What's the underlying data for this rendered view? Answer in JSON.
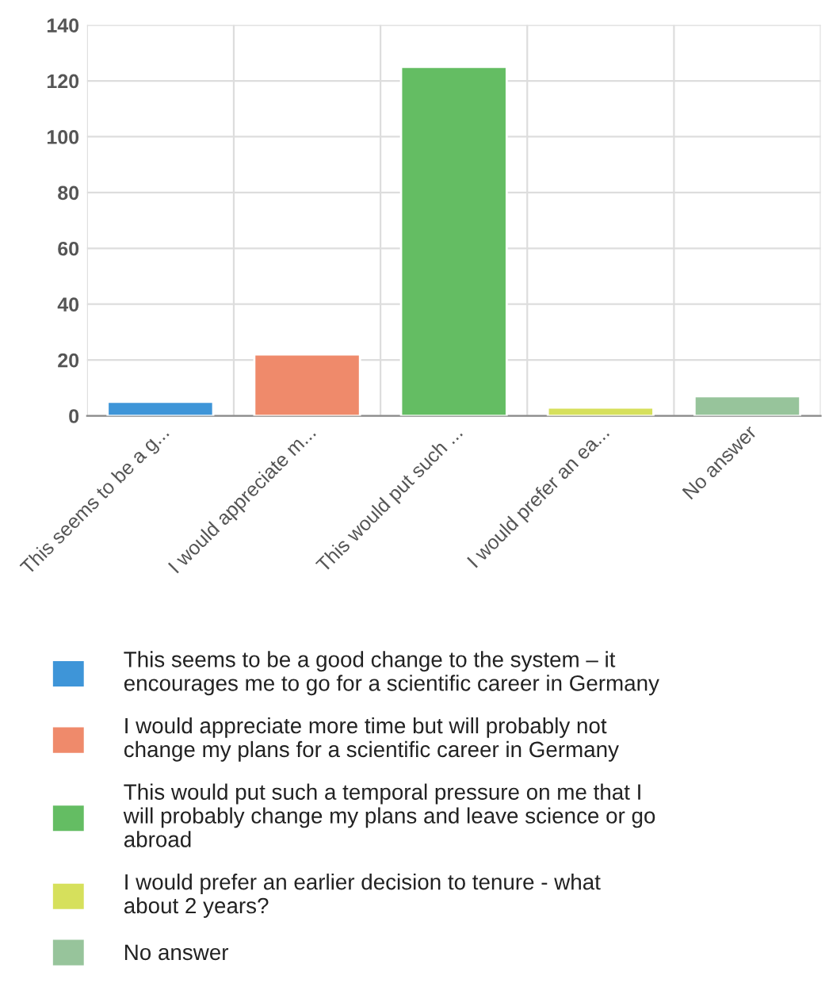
{
  "chart_data": {
    "type": "bar",
    "categories": [
      "This seems to be a g...",
      "I would appreciate m...",
      "This would put such ...",
      "I would prefer an ea...",
      "No answer"
    ],
    "series": [
      {
        "name": "This seems to be a good change to the system – it encourages me to go for a scientific career in Germany",
        "color": "#3e95d8",
        "values": [
          5,
          null,
          null,
          null,
          null
        ]
      },
      {
        "name": "I would appreciate more time but will probably not change my plans for a scientific career in Germany",
        "color": "#ef8a6b",
        "values": [
          null,
          22,
          null,
          null,
          null
        ]
      },
      {
        "name": "This would put such a temporal pressure on me that I will probably change my plans and leave science or go abroad",
        "color": "#64bd63",
        "values": [
          null,
          null,
          125,
          null,
          null
        ]
      },
      {
        "name": "I would prefer an earlier decision to tenure - what about 2 years?",
        "color": "#d6e05c",
        "values": [
          null,
          null,
          null,
          3,
          null
        ]
      },
      {
        "name": "No answer",
        "color": "#97c49b",
        "values": [
          null,
          null,
          null,
          null,
          7
        ]
      }
    ],
    "ylim": [
      0,
      140
    ],
    "yticks": [
      0,
      20,
      40,
      60,
      80,
      100,
      120,
      140
    ],
    "grid": true,
    "legend": "bottom"
  }
}
